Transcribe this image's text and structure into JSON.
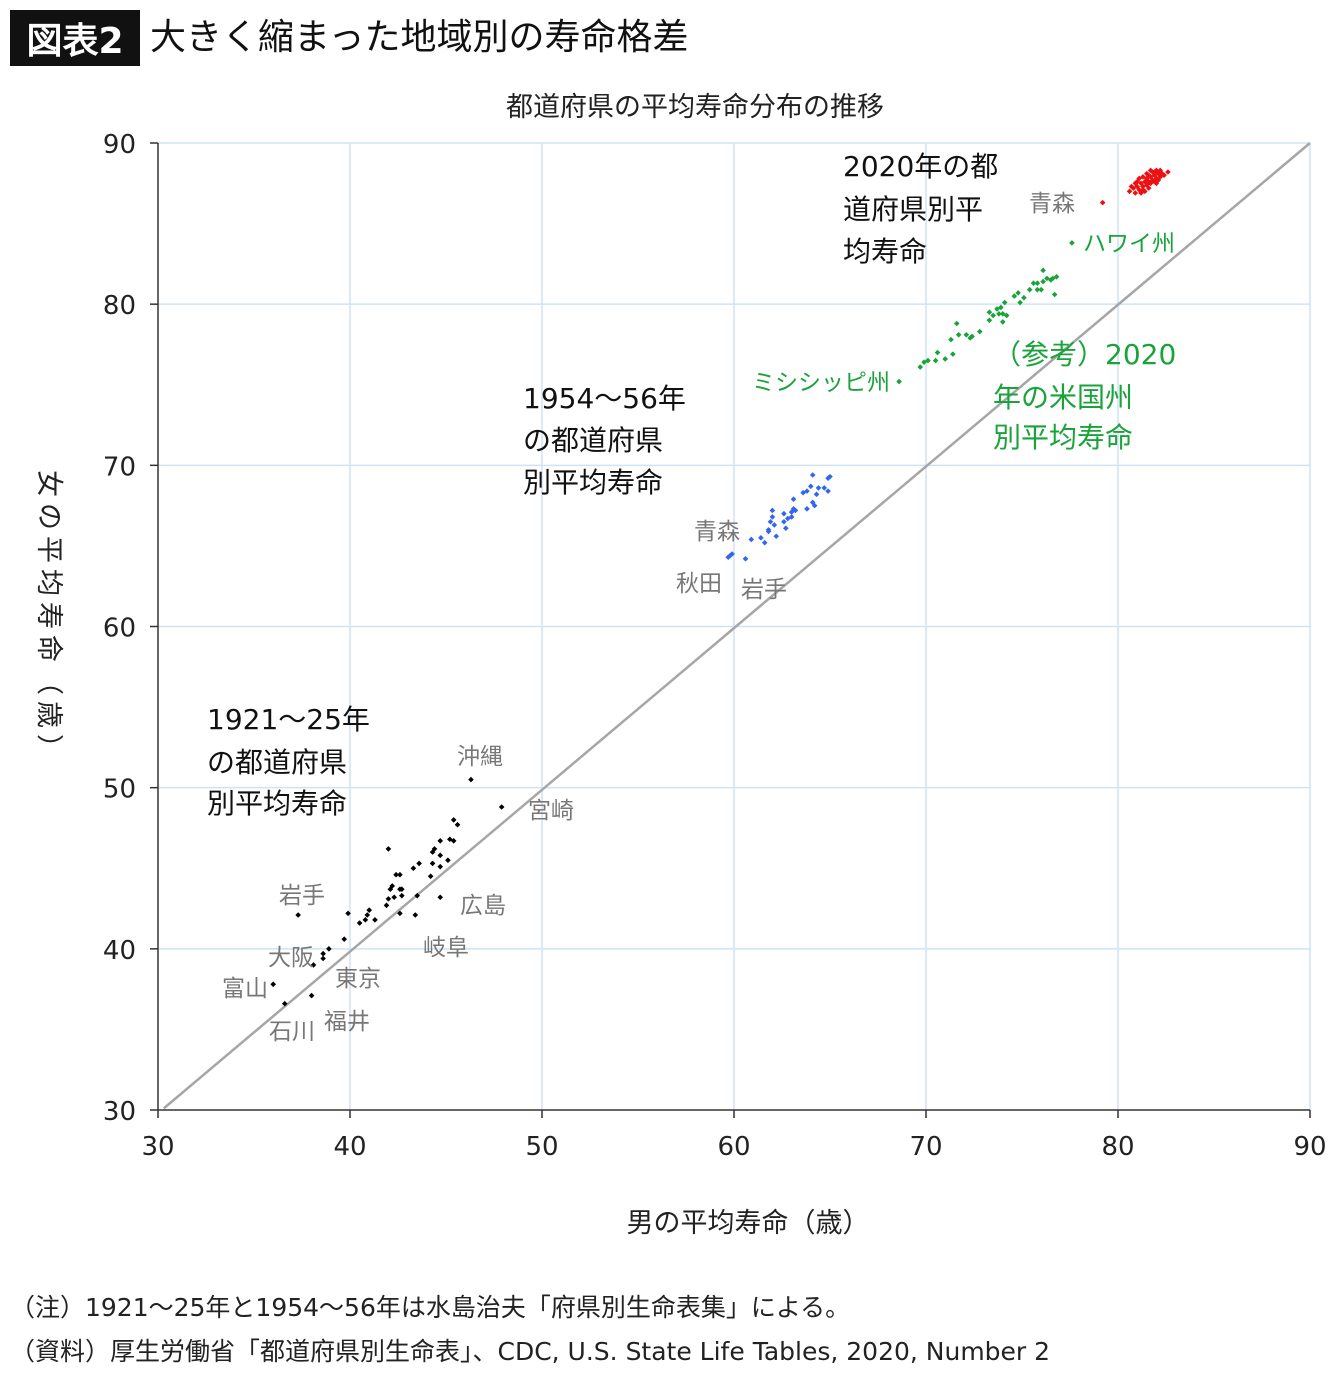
{
  "header": {
    "tag": "図表2",
    "title": "大きく縮まった地域別の寿命格差"
  },
  "footnotes": [
    "（注）1921〜25年と1954〜56年は水島治夫「府県別生命表集」による。",
    "（資料）厚生労働省「都道府県別生命表」、CDC, U.S. State Life Tables, 2020, Number 2"
  ],
  "chart_data": {
    "type": "scatter",
    "title": "都道府県の平均寿命分布の推移",
    "xlabel": "男の平均寿命（歳）",
    "ylabel": "女の平均寿命（歳）",
    "xlim": [
      30,
      90
    ],
    "ylim": [
      30,
      90
    ],
    "xticks": [
      "30",
      "40",
      "50",
      "60",
      "70",
      "80",
      "90"
    ],
    "yticks": [
      "30",
      "40",
      "50",
      "60",
      "70",
      "80",
      "90"
    ],
    "grid": true,
    "reference_line": "y = x",
    "colors": {
      "s1921": "#000000",
      "s1954": "#3366ee",
      "us2020": "#1aa33a",
      "s2020": "#ee1111",
      "diag": "#a6a6a6",
      "grid": "#cfe3f3",
      "label": "#777777"
    },
    "series": [
      {
        "key": "s1921",
        "points": [
          [
            46.3,
            50.5
          ],
          [
            47.9,
            48.8
          ],
          [
            45.4,
            48.0
          ],
          [
            45.6,
            47.7
          ],
          [
            44.7,
            46.7
          ],
          [
            45.2,
            46.8
          ],
          [
            45.4,
            46.7
          ],
          [
            42.0,
            46.2
          ],
          [
            44.4,
            46.2
          ],
          [
            44.3,
            46.0
          ],
          [
            44.7,
            45.8
          ],
          [
            43.3,
            45.0
          ],
          [
            43.6,
            45.3
          ],
          [
            44.3,
            45.3
          ],
          [
            44.7,
            45.1
          ],
          [
            45.1,
            45.5
          ],
          [
            42.4,
            44.6
          ],
          [
            42.6,
            44.6
          ],
          [
            44.2,
            44.5
          ],
          [
            42.2,
            43.9
          ],
          [
            42.1,
            43.7
          ],
          [
            42.6,
            43.7
          ],
          [
            42.7,
            43.7
          ],
          [
            42.0,
            43.1
          ],
          [
            42.3,
            43.2
          ],
          [
            42.7,
            43.3
          ],
          [
            43.5,
            43.3
          ],
          [
            44.7,
            43.2
          ],
          [
            41.9,
            42.7
          ],
          [
            42.6,
            42.2
          ],
          [
            43.4,
            42.1
          ],
          [
            39.9,
            42.2
          ],
          [
            41.0,
            42.4
          ],
          [
            40.9,
            42.1
          ],
          [
            40.8,
            41.8
          ],
          [
            41.3,
            41.8
          ],
          [
            40.5,
            41.6
          ],
          [
            37.3,
            42.1
          ],
          [
            39.7,
            40.6
          ],
          [
            38.9,
            40.0
          ],
          [
            38.6,
            39.7
          ],
          [
            38.6,
            39.4
          ],
          [
            38.1,
            39.0
          ],
          [
            36.0,
            37.8
          ],
          [
            38.0,
            37.1
          ],
          [
            36.6,
            36.6
          ]
        ]
      },
      {
        "key": "s1954",
        "points": [
          [
            64.1,
            69.4
          ],
          [
            64.9,
            69.2
          ],
          [
            65.0,
            69.3
          ],
          [
            64.0,
            68.7
          ],
          [
            63.6,
            68.3
          ],
          [
            63.8,
            68.4
          ],
          [
            64.4,
            68.6
          ],
          [
            64.7,
            68.6
          ],
          [
            64.9,
            68.4
          ],
          [
            64.3,
            68.2
          ],
          [
            64.1,
            67.7
          ],
          [
            64.2,
            67.5
          ],
          [
            63.1,
            67.9
          ],
          [
            63.8,
            67.3
          ],
          [
            63.2,
            67.2
          ],
          [
            63.1,
            67.3
          ],
          [
            63.0,
            67.1
          ],
          [
            62.6,
            67.0
          ],
          [
            63.0,
            66.8
          ],
          [
            62.8,
            66.7
          ],
          [
            62.0,
            67.2
          ],
          [
            62.6,
            66.5
          ],
          [
            62.0,
            66.8
          ],
          [
            61.9,
            66.5
          ],
          [
            62.1,
            66.3
          ],
          [
            61.8,
            66.0
          ],
          [
            61.8,
            65.9
          ],
          [
            62.7,
            66.1
          ],
          [
            62.2,
            65.6
          ],
          [
            61.4,
            65.5
          ],
          [
            60.9,
            65.4
          ],
          [
            61.6,
            65.2
          ],
          [
            59.8,
            64.4
          ],
          [
            59.9,
            64.5
          ],
          [
            60.6,
            64.2
          ],
          [
            59.7,
            64.3
          ]
        ]
      },
      {
        "key": "us2020",
        "points": [
          [
            77.6,
            83.8
          ],
          [
            76.1,
            82.1
          ],
          [
            76.8,
            81.7
          ],
          [
            76.6,
            81.6
          ],
          [
            76.5,
            81.5
          ],
          [
            76.3,
            81.6
          ],
          [
            76.1,
            81.4
          ],
          [
            75.8,
            81.3
          ],
          [
            75.6,
            81.3
          ],
          [
            76.0,
            80.9
          ],
          [
            75.8,
            80.9
          ],
          [
            75.4,
            80.9
          ],
          [
            76.7,
            80.6
          ],
          [
            75.1,
            80.4
          ],
          [
            74.9,
            80.1
          ],
          [
            74.8,
            80.7
          ],
          [
            74.6,
            80.5
          ],
          [
            74.1,
            80.1
          ],
          [
            73.9,
            79.8
          ],
          [
            73.7,
            79.7
          ],
          [
            74.2,
            79.3
          ],
          [
            74.0,
            79.4
          ],
          [
            73.3,
            79.5
          ],
          [
            73.5,
            79.3
          ],
          [
            73.8,
            79.4
          ],
          [
            73.3,
            79.0
          ],
          [
            74.0,
            78.9
          ],
          [
            72.8,
            78.3
          ],
          [
            72.4,
            78.0
          ],
          [
            72.3,
            77.9
          ],
          [
            72.1,
            78.1
          ],
          [
            71.6,
            78.8
          ],
          [
            71.7,
            78.1
          ],
          [
            71.3,
            77.8
          ],
          [
            70.6,
            77.0
          ],
          [
            70.1,
            76.5
          ],
          [
            69.9,
            76.4
          ],
          [
            70.5,
            76.5
          ],
          [
            71.0,
            76.6
          ],
          [
            71.4,
            76.9
          ],
          [
            69.7,
            76.1
          ],
          [
            68.6,
            75.2
          ]
        ]
      },
      {
        "key": "s2020",
        "points": [
          [
            79.2,
            86.3
          ],
          [
            80.6,
            87.0
          ],
          [
            80.8,
            87.2
          ],
          [
            80.9,
            86.9
          ],
          [
            81.0,
            87.3
          ],
          [
            81.1,
            87.1
          ],
          [
            81.2,
            87.5
          ],
          [
            81.3,
            87.3
          ],
          [
            81.4,
            87.6
          ],
          [
            81.5,
            87.4
          ],
          [
            81.5,
            87.8
          ],
          [
            81.6,
            87.6
          ],
          [
            81.7,
            87.9
          ],
          [
            81.7,
            87.5
          ],
          [
            81.8,
            87.7
          ],
          [
            81.9,
            88.0
          ],
          [
            81.9,
            87.6
          ],
          [
            82.0,
            87.8
          ],
          [
            82.1,
            88.1
          ],
          [
            82.1,
            87.7
          ],
          [
            82.2,
            87.9
          ],
          [
            82.3,
            88.1
          ],
          [
            81.3,
            87.9
          ],
          [
            81.0,
            87.6
          ],
          [
            81.4,
            87.0
          ],
          [
            81.6,
            87.2
          ],
          [
            82.0,
            88.3
          ],
          [
            82.4,
            88.0
          ],
          [
            82.6,
            88.2
          ],
          [
            81.2,
            86.9
          ],
          [
            81.8,
            88.2
          ],
          [
            80.7,
            87.3
          ],
          [
            81.1,
            87.8
          ],
          [
            81.5,
            88.1
          ],
          [
            81.9,
            88.2
          ],
          [
            82.2,
            88.3
          ],
          [
            81.3,
            87.1
          ],
          [
            81.6,
            88.0
          ],
          [
            82.0,
            87.5
          ],
          [
            80.9,
            87.5
          ],
          [
            81.7,
            88.3
          ]
        ]
      }
    ],
    "annotations": {
      "a2020": [
        "2020年の都",
        "道府県別平",
        "均寿命"
      ],
      "a1954": [
        "1954〜56年",
        "の都道府県",
        "別平均寿命"
      ],
      "a1921": [
        "1921〜25年",
        "の都道府県",
        "別平均寿命"
      ],
      "aus": [
        "（参考）2020",
        "年の米国州",
        "別平均寿命"
      ]
    },
    "point_labels": {
      "aomori2020": "青森",
      "hawaii": "ハワイ州",
      "mississippi": "ミシシッピ州",
      "aomori1954": "青森",
      "akita": "秋田",
      "iwate1954": "岩手",
      "okinawa": "沖縄",
      "miyazaki": "宮崎",
      "hiroshima": "広島",
      "gifu": "岐阜",
      "iwate1921": "岩手",
      "osaka": "大阪",
      "tokyo": "東京",
      "toyama": "富山",
      "ishikawa": "石川",
      "fukui": "福井"
    }
  }
}
